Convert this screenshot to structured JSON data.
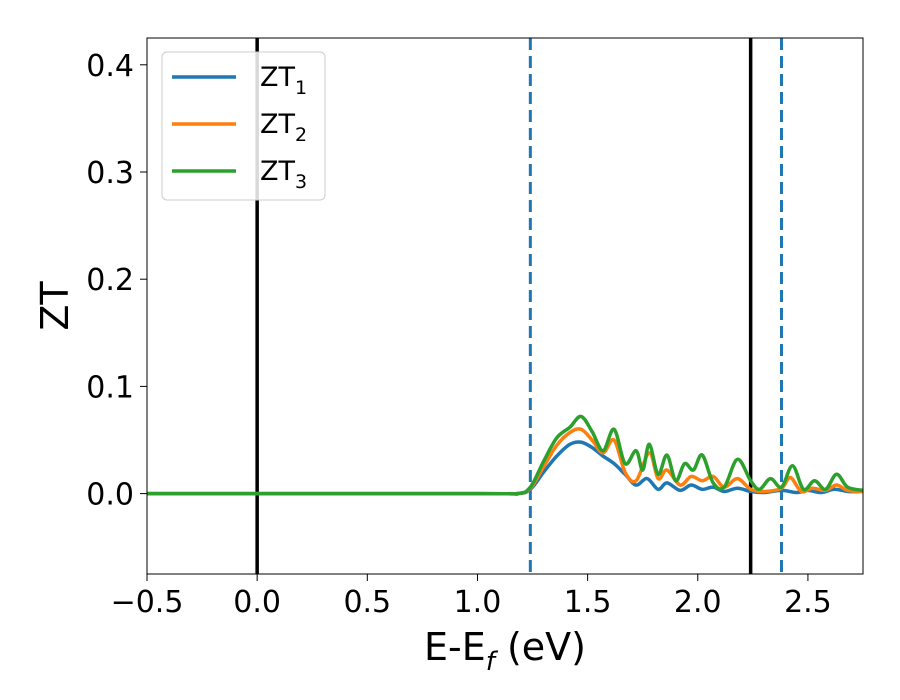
{
  "chart_data": {
    "type": "line",
    "title": "",
    "xlabel": {
      "main": "E-E",
      "sub": "f",
      "unit": " (eV)"
    },
    "ylabel": "ZT",
    "xlim": [
      -0.5,
      2.75
    ],
    "ylim": [
      -0.075,
      0.425
    ],
    "x_ticks": [
      -0.5,
      0.0,
      0.5,
      1.0,
      1.5,
      2.0,
      2.5
    ],
    "x_tick_labels": [
      "−0.5",
      "0.0",
      "0.5",
      "1.0",
      "1.5",
      "2.0",
      "2.5"
    ],
    "y_ticks": [
      0.0,
      0.1,
      0.2,
      0.3,
      0.4
    ],
    "y_tick_labels": [
      "0.0",
      "0.1",
      "0.2",
      "0.3",
      "0.4"
    ],
    "grid": false,
    "legend_position": "top-left",
    "vertical_lines": [
      {
        "x": 0.0,
        "style": "solid",
        "color": "#000000"
      },
      {
        "x": 2.24,
        "style": "solid",
        "color": "#000000"
      },
      {
        "x": 1.24,
        "style": "dashed",
        "color": "#1f77b4"
      },
      {
        "x": 2.38,
        "style": "dashed",
        "color": "#1f77b4"
      }
    ],
    "series": [
      {
        "name": "ZT",
        "subscript": "1",
        "color": "#1f77b4",
        "x": [
          -0.5,
          1.0,
          1.18,
          1.24,
          1.3,
          1.36,
          1.42,
          1.47,
          1.52,
          1.57,
          1.62,
          1.67,
          1.72,
          1.77,
          1.82,
          1.86,
          1.92,
          1.97,
          2.02,
          2.07,
          2.12,
          2.18,
          2.24,
          2.3,
          2.38,
          2.45,
          2.5,
          2.56,
          2.62,
          2.68,
          2.75
        ],
        "y": [
          0.0,
          0.0,
          0.0,
          0.004,
          0.02,
          0.035,
          0.046,
          0.048,
          0.043,
          0.035,
          0.028,
          0.018,
          0.008,
          0.014,
          0.004,
          0.01,
          0.003,
          0.008,
          0.004,
          0.006,
          0.002,
          0.005,
          0.002,
          0.001,
          0.003,
          0.001,
          0.003,
          0.001,
          0.004,
          0.002,
          0.002
        ]
      },
      {
        "name": "ZT",
        "subscript": "2",
        "color": "#ff7f0e",
        "x": [
          -0.5,
          1.0,
          1.18,
          1.24,
          1.3,
          1.36,
          1.42,
          1.47,
          1.52,
          1.57,
          1.62,
          1.67,
          1.72,
          1.78,
          1.82,
          1.86,
          1.92,
          1.97,
          2.02,
          2.07,
          2.12,
          2.18,
          2.24,
          2.3,
          2.38,
          2.42,
          2.47,
          2.52,
          2.58,
          2.63,
          2.68,
          2.75
        ],
        "y": [
          0.0,
          0.0,
          0.0,
          0.005,
          0.025,
          0.045,
          0.057,
          0.06,
          0.05,
          0.038,
          0.05,
          0.02,
          0.012,
          0.038,
          0.014,
          0.022,
          0.008,
          0.016,
          0.012,
          0.016,
          0.006,
          0.014,
          0.004,
          0.002,
          0.005,
          0.015,
          0.002,
          0.005,
          0.003,
          0.008,
          0.003,
          0.002
        ]
      },
      {
        "name": "ZT",
        "subscript": "3",
        "color": "#2ca02c",
        "x": [
          -0.5,
          1.0,
          1.18,
          1.24,
          1.3,
          1.36,
          1.42,
          1.47,
          1.52,
          1.57,
          1.62,
          1.67,
          1.72,
          1.75,
          1.78,
          1.82,
          1.86,
          1.9,
          1.94,
          1.98,
          2.02,
          2.07,
          2.12,
          2.18,
          2.24,
          2.28,
          2.33,
          2.38,
          2.43,
          2.48,
          2.53,
          2.58,
          2.63,
          2.68,
          2.75
        ],
        "y": [
          0.0,
          0.0,
          0.0,
          0.006,
          0.03,
          0.052,
          0.062,
          0.072,
          0.058,
          0.04,
          0.06,
          0.028,
          0.04,
          0.022,
          0.046,
          0.018,
          0.036,
          0.012,
          0.028,
          0.022,
          0.036,
          0.01,
          0.006,
          0.032,
          0.012,
          0.004,
          0.014,
          0.006,
          0.026,
          0.004,
          0.012,
          0.004,
          0.018,
          0.006,
          0.003
        ]
      }
    ]
  }
}
